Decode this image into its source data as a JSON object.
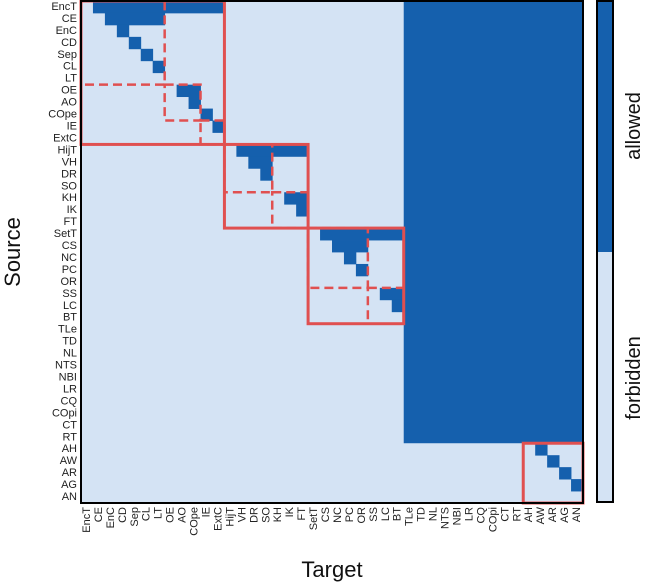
{
  "chart_data": {
    "type": "heatmap",
    "title": "",
    "xlabel": "Target",
    "ylabel": "Source",
    "labels": [
      "EncT",
      "CE",
      "EnC",
      "CD",
      "Sep",
      "CL",
      "LT",
      "OE",
      "AO",
      "COpe",
      "IE",
      "ExtC",
      "HijT",
      "VH",
      "DR",
      "SO",
      "KH",
      "IK",
      "FT",
      "SetT",
      "CS",
      "NC",
      "PC",
      "OR",
      "SS",
      "LC",
      "BT",
      "TLe",
      "TD",
      "NL",
      "NTS",
      "NBI",
      "LR",
      "CQ",
      "COpi",
      "CT",
      "RT",
      "AH",
      "AW",
      "AR",
      "AG",
      "AN"
    ],
    "value_legend": {
      "1": "allowed",
      "0": "forbidden"
    },
    "allowed_ranges": [
      {
        "row": "EncT",
        "targets": [
          [
            "CE",
            "ExtC"
          ]
        ]
      },
      {
        "row": "CE",
        "targets": [
          [
            "EnC",
            "LT"
          ]
        ]
      },
      {
        "row": "EnC",
        "targets": [
          [
            "CD",
            "CD"
          ]
        ]
      },
      {
        "row": "CD",
        "targets": [
          [
            "Sep",
            "Sep"
          ]
        ]
      },
      {
        "row": "Sep",
        "targets": [
          [
            "CL",
            "CL"
          ]
        ]
      },
      {
        "row": "CL",
        "targets": [
          [
            "LT",
            "LT"
          ]
        ]
      },
      {
        "row": "OE",
        "targets": [
          [
            "AO",
            "COpe"
          ]
        ]
      },
      {
        "row": "AO",
        "targets": [
          [
            "COpe",
            "COpe"
          ]
        ]
      },
      {
        "row": "COpe",
        "targets": [
          [
            "IE",
            "IE"
          ]
        ]
      },
      {
        "row": "IE",
        "targets": [
          [
            "ExtC",
            "ExtC"
          ]
        ]
      },
      {
        "row": "HijT",
        "targets": [
          [
            "VH",
            "FT"
          ]
        ]
      },
      {
        "row": "VH",
        "targets": [
          [
            "DR",
            "SO"
          ]
        ]
      },
      {
        "row": "DR",
        "targets": [
          [
            "SO",
            "SO"
          ]
        ]
      },
      {
        "row": "KH",
        "targets": [
          [
            "IK",
            "FT"
          ]
        ]
      },
      {
        "row": "IK",
        "targets": [
          [
            "FT",
            "FT"
          ]
        ]
      },
      {
        "row": "SetT",
        "targets": [
          [
            "CS",
            "BT"
          ]
        ]
      },
      {
        "row": "CS",
        "targets": [
          [
            "NC",
            "OR"
          ]
        ]
      },
      {
        "row": "NC",
        "targets": [
          [
            "PC",
            "PC"
          ]
        ]
      },
      {
        "row": "PC",
        "targets": [
          [
            "OR",
            "OR"
          ]
        ]
      },
      {
        "row": "SS",
        "targets": [
          [
            "LC",
            "BT"
          ]
        ]
      },
      {
        "row": "LC",
        "targets": [
          [
            "BT",
            "BT"
          ]
        ]
      },
      {
        "row": "AH",
        "targets": [
          [
            "AW",
            "AW"
          ]
        ]
      },
      {
        "row": "AW",
        "targets": [
          [
            "AR",
            "AR"
          ]
        ]
      },
      {
        "row": "AR",
        "targets": [
          [
            "AG",
            "AG"
          ]
        ]
      },
      {
        "row": "AG",
        "targets": [
          [
            "AN",
            "AN"
          ]
        ]
      }
    ],
    "allowed_blocks": [
      {
        "rows": [
          "EncT",
          "RT"
        ],
        "cols": [
          "TLe",
          "AN"
        ]
      }
    ],
    "group_boxes": [
      {
        "from": "EncT",
        "to": "ExtC"
      },
      {
        "from": "HijT",
        "to": "FT"
      },
      {
        "from": "SetT",
        "to": "BT"
      },
      {
        "from": "AH",
        "to": "AN"
      }
    ],
    "subgroup_boxes": [
      {
        "from": "EncT",
        "to": "LT"
      },
      {
        "from": "OE",
        "to": "COpe"
      },
      {
        "from": "IE",
        "to": "ExtC"
      },
      {
        "from": "HijT",
        "to": "SO"
      },
      {
        "from": "KH",
        "to": "FT"
      },
      {
        "from": "SetT",
        "to": "OR"
      },
      {
        "from": "SS",
        "to": "BT"
      }
    ],
    "colors": {
      "allowed": "#1560ad",
      "forbidden": "#d4e3f4",
      "boxes": "#e05050"
    },
    "grid": false
  }
}
